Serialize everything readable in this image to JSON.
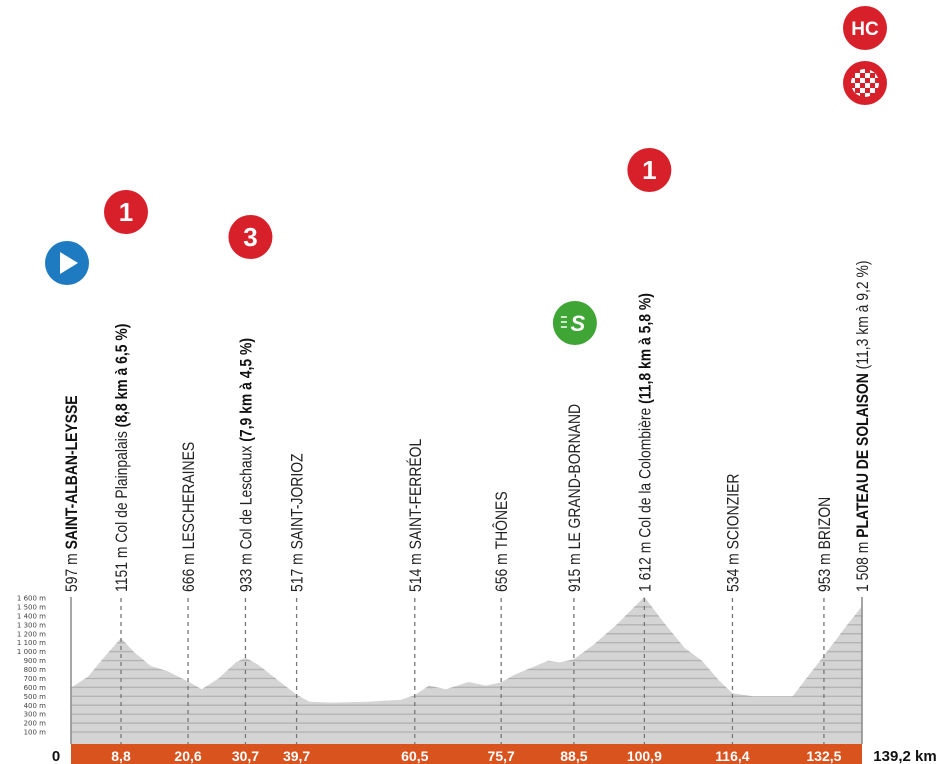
{
  "chart_data": {
    "type": "area",
    "xlabel": "",
    "ylabel": "",
    "xlim": [
      0,
      139.2
    ],
    "ylim": [
      0,
      1600
    ],
    "y_ticks": [
      "100 m",
      "200 m",
      "300 m",
      "400 m",
      "500 m",
      "600 m",
      "700 m",
      "800 m",
      "900 m",
      "1 000 m",
      "1 100 m",
      "1 200 m",
      "1 300 m",
      "1 400 m",
      "1 500 m",
      "1 600 m"
    ],
    "start_label": "0",
    "end_label": "139,2 km",
    "colors": {
      "fill": "#d4d4d4",
      "stripe": "#b4b4b4",
      "bar": "#d9531e",
      "climb": "#d8202a",
      "start": "#1f7bc1",
      "sprint": "#3fa535"
    },
    "profile": [
      [
        0,
        597
      ],
      [
        3,
        720
      ],
      [
        6,
        950
      ],
      [
        8.8,
        1151
      ],
      [
        11,
        1000
      ],
      [
        14,
        840
      ],
      [
        17,
        780
      ],
      [
        20.6,
        666
      ],
      [
        23,
        580
      ],
      [
        26,
        700
      ],
      [
        29,
        880
      ],
      [
        30.7,
        933
      ],
      [
        33,
        850
      ],
      [
        36,
        700
      ],
      [
        39.7,
        517
      ],
      [
        42,
        440
      ],
      [
        46,
        430
      ],
      [
        52,
        440
      ],
      [
        58,
        460
      ],
      [
        60.5,
        514
      ],
      [
        63,
        620
      ],
      [
        66,
        580
      ],
      [
        70,
        660
      ],
      [
        73,
        620
      ],
      [
        75.7,
        656
      ],
      [
        78,
        740
      ],
      [
        81,
        820
      ],
      [
        84,
        900
      ],
      [
        86,
        880
      ],
      [
        88.5,
        915
      ],
      [
        92,
        1080
      ],
      [
        96,
        1300
      ],
      [
        100.9,
        1612
      ],
      [
        104,
        1350
      ],
      [
        108,
        1040
      ],
      [
        111,
        900
      ],
      [
        114,
        680
      ],
      [
        116.4,
        534
      ],
      [
        120,
        500
      ],
      [
        127,
        500
      ],
      [
        130,
        750
      ],
      [
        132.5,
        953
      ],
      [
        136,
        1250
      ],
      [
        139.2,
        1508
      ]
    ],
    "waypoints": [
      {
        "km": "0",
        "km_value": 0,
        "alt": "597 m",
        "name": "SAINT-ALBAN-LEYSSE",
        "name_bold": true,
        "detail": "",
        "badge": "start",
        "badge_text": "",
        "show_km": false
      },
      {
        "km": "8,8",
        "km_value": 8.8,
        "alt": "1151 m",
        "name": "Col de Plainpalais",
        "name_bold": false,
        "detail": "(8,8 km à 6,5 %)",
        "badge": "climb",
        "badge_text": "1",
        "show_km": true
      },
      {
        "km": "20,6",
        "km_value": 20.6,
        "alt": "666 m",
        "name": "LESCHERAINES",
        "name_bold": false,
        "detail": "",
        "badge": "",
        "badge_text": "",
        "show_km": true
      },
      {
        "km": "30,7",
        "km_value": 30.7,
        "alt": "933 m",
        "name": "Col de Leschaux",
        "name_bold": false,
        "detail": "(7,9 km à 4,5 %)",
        "badge": "climb",
        "badge_text": "3",
        "show_km": true
      },
      {
        "km": "39,7",
        "km_value": 39.7,
        "alt": "517 m",
        "name": "SAINT-JORIOZ",
        "name_bold": false,
        "detail": "",
        "badge": "",
        "badge_text": "",
        "show_km": true
      },
      {
        "km": "60,5",
        "km_value": 60.5,
        "alt": "514 m",
        "name": "SAINT-FERRÉOL",
        "name_bold": false,
        "detail": "",
        "badge": "",
        "badge_text": "",
        "show_km": true
      },
      {
        "km": "75,7",
        "km_value": 75.7,
        "alt": "656 m",
        "name": "THÔNES",
        "name_bold": false,
        "detail": "",
        "badge": "",
        "badge_text": "",
        "show_km": true
      },
      {
        "km": "88,5",
        "km_value": 88.5,
        "alt": "915 m",
        "name": "LE GRAND-BORNAND",
        "name_bold": false,
        "detail": "",
        "badge": "sprint",
        "badge_text": "S",
        "show_km": true
      },
      {
        "km": "100,9",
        "km_value": 100.9,
        "alt": "1 612 m",
        "name": "Col de la Colombière",
        "name_bold": false,
        "detail": "(11,8 km à 5,8 %)",
        "badge": "climb",
        "badge_text": "1",
        "show_km": true
      },
      {
        "km": "116,4",
        "km_value": 116.4,
        "alt": "534 m",
        "name": "SCIONZIER",
        "name_bold": false,
        "detail": "",
        "badge": "",
        "badge_text": "",
        "show_km": true
      },
      {
        "km": "132,5",
        "km_value": 132.5,
        "alt": "953 m",
        "name": "BRIZON",
        "name_bold": false,
        "detail": "",
        "badge": "",
        "badge_text": "",
        "show_km": true
      },
      {
        "km": "139,2",
        "km_value": 139.2,
        "alt": "1 508 m",
        "name": "PLATEAU DE SOLAISON",
        "name_bold": true,
        "detail": "(11,3 km à 9,2 %)",
        "badge": "climb-finish",
        "badge_text": "HC",
        "show_km": false
      }
    ]
  }
}
